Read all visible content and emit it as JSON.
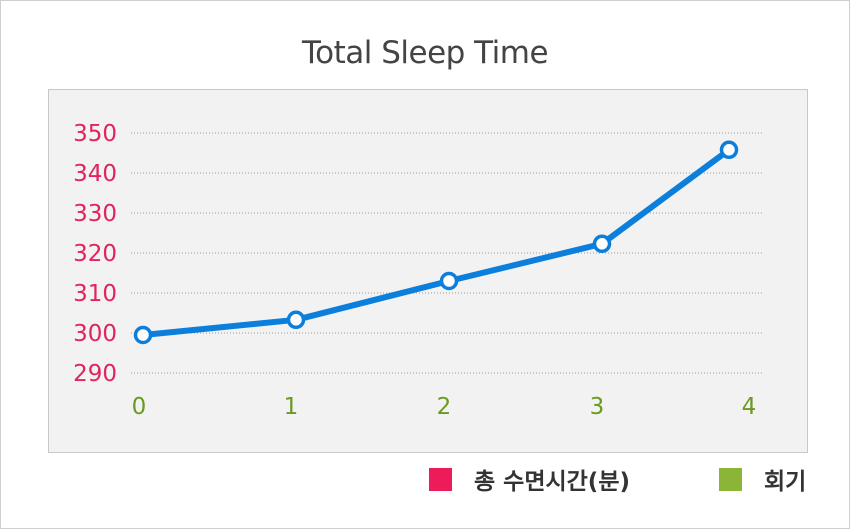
{
  "chart_data": {
    "type": "line",
    "title": "Total Sleep Time",
    "x": [
      0,
      1,
      2,
      3,
      4
    ],
    "xticks": [
      "0",
      "1",
      "2",
      "3",
      "4"
    ],
    "yticks": [
      "290",
      "300",
      "310",
      "320",
      "330",
      "340",
      "350"
    ],
    "ylim": [
      290,
      350
    ],
    "grid": true,
    "series": [
      {
        "name": "총 수면시간(분)",
        "values": [
          299.5,
          303.3,
          313.0,
          322.3,
          345.8
        ]
      }
    ],
    "legend": [
      {
        "label": "총 수면시간(분)",
        "color": "#ee1b5b"
      },
      {
        "label": "회기",
        "color": "#8cb437"
      }
    ],
    "colors": {
      "line": "#0b7fdb",
      "yaxis_text": "#e0245e",
      "xaxis_text": "#6a9a1f",
      "grid": "#9a9a9a"
    }
  }
}
